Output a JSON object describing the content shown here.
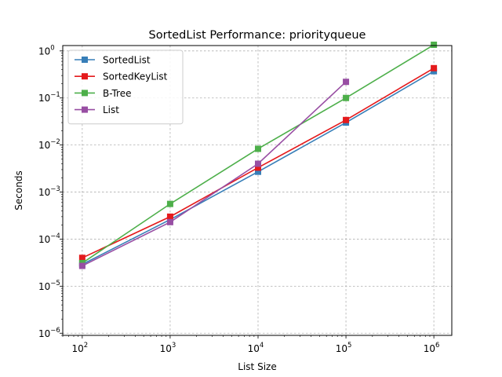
{
  "chart_data": {
    "type": "line",
    "title": "SortedList Performance: priorityqueue",
    "xlabel": "List Size",
    "ylabel": "Seconds",
    "xscale": "log",
    "yscale": "log",
    "xlim": [
      60,
      1600000
    ],
    "ylim": [
      9e-07,
      1.3
    ],
    "x_ticks": [
      {
        "value": 100,
        "base": "10",
        "exp": "2"
      },
      {
        "value": 1000,
        "base": "10",
        "exp": "3"
      },
      {
        "value": 10000,
        "base": "10",
        "exp": "4"
      },
      {
        "value": 100000,
        "base": "10",
        "exp": "5"
      },
      {
        "value": 1000000,
        "base": "10",
        "exp": "6"
      }
    ],
    "y_ticks": [
      {
        "value": 1e-06,
        "base": "10",
        "exp": "−6"
      },
      {
        "value": 1e-05,
        "base": "10",
        "exp": "−5"
      },
      {
        "value": 0.0001,
        "base": "10",
        "exp": "−4"
      },
      {
        "value": 0.001,
        "base": "10",
        "exp": "−3"
      },
      {
        "value": 0.01,
        "base": "10",
        "exp": "−2"
      },
      {
        "value": 0.1,
        "base": "10",
        "exp": "−1"
      },
      {
        "value": 1,
        "base": "10",
        "exp": "0"
      }
    ],
    "grid": true,
    "legend_position": "top-left",
    "series": [
      {
        "name": "SortedList",
        "color": "#377eb8",
        "x": [
          100,
          1000,
          10000,
          100000,
          1000000
        ],
        "y": [
          2.9e-05,
          0.00026,
          0.0027,
          0.03,
          0.37
        ]
      },
      {
        "name": "SortedKeyList",
        "color": "#e41a1c",
        "x": [
          100,
          1000,
          10000,
          100000,
          1000000
        ],
        "y": [
          4e-05,
          0.0003,
          0.0033,
          0.034,
          0.43
        ]
      },
      {
        "name": "B-Tree",
        "color": "#4daf4a",
        "x": [
          100,
          1000,
          10000,
          100000,
          1000000
        ],
        "y": [
          3.1e-05,
          0.00056,
          0.0083,
          0.1,
          1.35
        ]
      },
      {
        "name": "List",
        "color": "#984ea3",
        "x": [
          100,
          1000,
          10000,
          100000
        ],
        "y": [
          2.7e-05,
          0.00023,
          0.004,
          0.22
        ]
      }
    ]
  }
}
